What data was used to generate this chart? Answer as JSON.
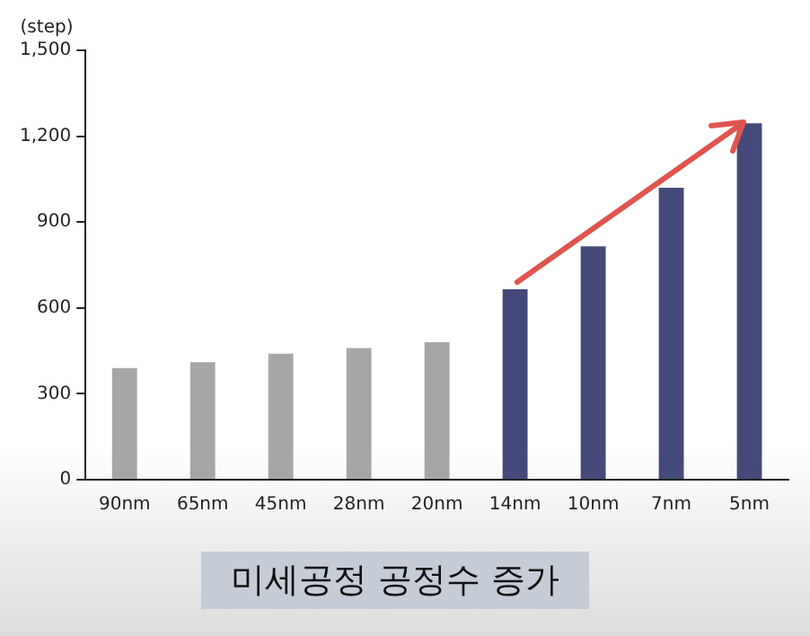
{
  "chart_data": {
    "type": "bar",
    "title": "미세공정 공정수 증가",
    "ylabel": "(step)",
    "categories": [
      "90nm",
      "65nm",
      "45nm",
      "28nm",
      "20nm",
      "14nm",
      "10nm",
      "7nm",
      "5nm"
    ],
    "values": [
      390,
      410,
      440,
      460,
      480,
      665,
      815,
      1020,
      1245
    ],
    "colors": [
      "#a6a6a6",
      "#a6a6a6",
      "#a6a6a6",
      "#a6a6a6",
      "#a6a6a6",
      "#45497a",
      "#45497a",
      "#45497a",
      "#45497a"
    ],
    "ylim": [
      0,
      1500
    ],
    "yticks": [
      0,
      300,
      600,
      900,
      {
        "value": 1200,
        "label": "1,200"
      },
      {
        "value": 1500,
        "label": "1,500"
      }
    ],
    "grid": false,
    "legend": false
  }
}
